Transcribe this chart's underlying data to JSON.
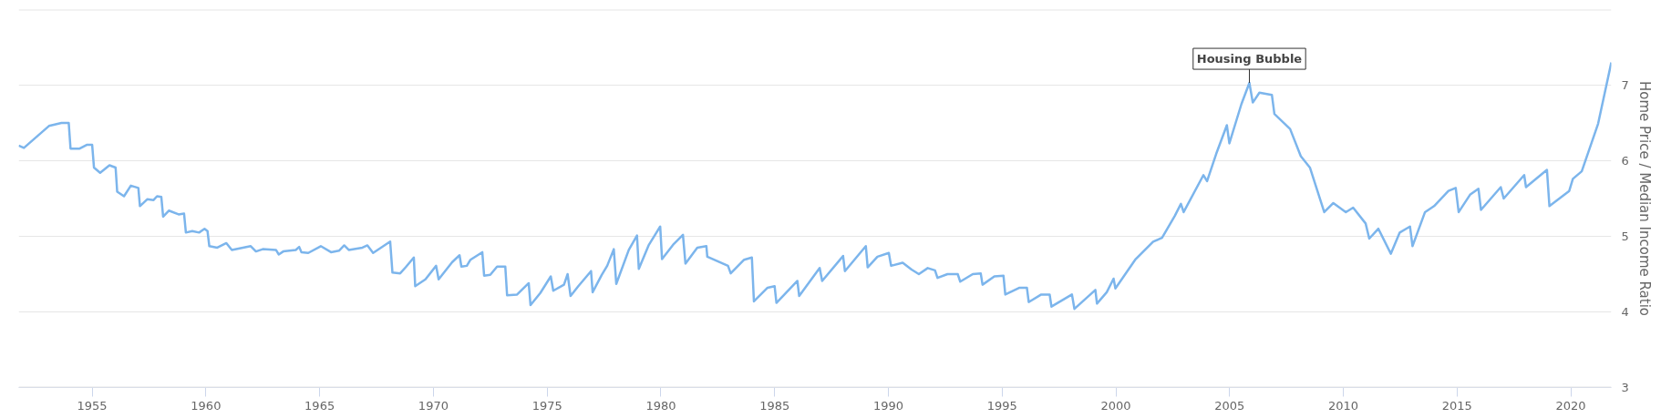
{
  "chart_data": {
    "type": "line",
    "ylabel": "Home Price / Median Income Ratio",
    "annotations": [
      {
        "text": "Housing Bubble",
        "x": 2005.87,
        "y": 7.03
      }
    ],
    "xlim": [
      1951.77,
      2021.78
    ],
    "xticks": [
      1955,
      1960,
      1965,
      1970,
      1975,
      1980,
      1985,
      1990,
      1995,
      2000,
      2005,
      2010,
      2015,
      2020
    ],
    "ylim": [
      3,
      8
    ],
    "yticks": [
      3,
      4,
      5,
      6,
      7,
      {
        "value": 8,
        "label": null
      }
    ],
    "grid": "y",
    "marker": "none",
    "line_style": "solid",
    "series": [
      {
        "color": "#7cb5ec",
        "x": [
          1951.77,
          1952.0,
          1953.1,
          1953.65,
          1953.97,
          1954.05,
          1954.45,
          1954.76,
          1955.0,
          1955.08,
          1955.35,
          1955.76,
          1956.03,
          1956.1,
          1956.4,
          1956.7,
          1957.03,
          1957.1,
          1957.42,
          1957.7,
          1957.85,
          1958.04,
          1958.12,
          1958.37,
          1958.8,
          1959.04,
          1959.12,
          1959.4,
          1959.7,
          1959.94,
          1960.07,
          1960.15,
          1960.5,
          1960.9,
          1961.14,
          1961.97,
          1962.2,
          1962.5,
          1963.08,
          1963.2,
          1963.4,
          1963.95,
          1964.1,
          1964.2,
          1964.5,
          1965.05,
          1965.5,
          1965.85,
          1966.08,
          1966.28,
          1966.88,
          1967.1,
          1967.35,
          1968.1,
          1968.2,
          1968.54,
          1968.78,
          1969.14,
          1969.2,
          1969.65,
          1970.12,
          1970.23,
          1970.83,
          1971.15,
          1971.23,
          1971.47,
          1971.63,
          1972.15,
          1972.23,
          1972.5,
          1972.8,
          1973.16,
          1973.24,
          1973.68,
          1974.19,
          1974.27,
          1974.7,
          1975.16,
          1975.27,
          1975.74,
          1975.9,
          1976.03,
          1976.37,
          1976.93,
          1977.0,
          1977.4,
          1977.64,
          1977.93,
          1978.04,
          1978.59,
          1978.95,
          1979.03,
          1979.46,
          1979.97,
          1980.05,
          1980.57,
          1980.97,
          1981.08,
          1981.6,
          1982.0,
          1982.04,
          1982.95,
          1983.07,
          1983.66,
          1984.0,
          1984.09,
          1984.69,
          1985.0,
          1985.08,
          1986.0,
          1986.08,
          1986.98,
          1987.09,
          1988.01,
          1988.09,
          1989.01,
          1989.09,
          1989.52,
          1990.02,
          1990.12,
          1990.63,
          1991.02,
          1991.34,
          1991.73,
          1992.05,
          1992.16,
          1992.6,
          1993.05,
          1993.16,
          1993.71,
          1994.06,
          1994.14,
          1994.66,
          1995.06,
          1995.14,
          1995.77,
          1996.09,
          1996.17,
          1996.72,
          1997.09,
          1997.17,
          1998.07,
          1998.18,
          1999.1,
          1999.17,
          1999.6,
          1999.9,
          1999.98,
          2000.85,
          2001.64,
          2002.03,
          2002.59,
          2002.86,
          2002.98,
          2003.85,
          2004.01,
          2004.41,
          2004.88,
          2004.99,
          2005.52,
          2005.87,
          2006.02,
          2006.31,
          2006.86,
          2006.97,
          2007.66,
          2008.13,
          2008.53,
          2009.16,
          2009.56,
          2010.11,
          2010.43,
          2010.98,
          2011.14,
          2011.54,
          2012.09,
          2012.48,
          2012.93,
          2013.04,
          2013.59,
          2013.99,
          2014.62,
          2014.94,
          2015.07,
          2015.57,
          2015.94,
          2016.05,
          2016.92,
          2017.05,
          2017.95,
          2018.03,
          2018.95,
          2019.06,
          2019.93,
          2020.09,
          2020.48,
          2021.2,
          2021.78
        ],
        "values": [
          6.2,
          6.17,
          6.46,
          6.5,
          6.5,
          6.16,
          6.16,
          6.21,
          6.21,
          5.91,
          5.84,
          5.94,
          5.91,
          5.59,
          5.53,
          5.67,
          5.64,
          5.4,
          5.49,
          5.48,
          5.53,
          5.52,
          5.26,
          5.34,
          5.29,
          5.3,
          5.05,
          5.07,
          5.05,
          5.1,
          5.07,
          4.87,
          4.85,
          4.91,
          4.82,
          4.87,
          4.8,
          4.83,
          4.82,
          4.76,
          4.8,
          4.82,
          4.86,
          4.79,
          4.78,
          4.87,
          4.79,
          4.81,
          4.88,
          4.82,
          4.85,
          4.88,
          4.78,
          4.93,
          4.52,
          4.51,
          4.59,
          4.72,
          4.34,
          4.43,
          4.61,
          4.43,
          4.66,
          4.75,
          4.6,
          4.61,
          4.69,
          4.79,
          4.48,
          4.49,
          4.6,
          4.6,
          4.22,
          4.23,
          4.38,
          4.09,
          4.25,
          4.47,
          4.28,
          4.36,
          4.5,
          4.21,
          4.34,
          4.54,
          4.26,
          4.49,
          4.61,
          4.83,
          4.37,
          4.82,
          5.01,
          4.57,
          4.88,
          5.13,
          4.7,
          4.9,
          5.02,
          4.64,
          4.85,
          4.87,
          4.73,
          4.61,
          4.51,
          4.69,
          4.72,
          4.14,
          4.32,
          4.34,
          4.12,
          4.41,
          4.21,
          4.58,
          4.41,
          4.74,
          4.54,
          4.87,
          4.59,
          4.73,
          4.78,
          4.61,
          4.65,
          4.56,
          4.5,
          4.58,
          4.55,
          4.45,
          4.5,
          4.5,
          4.4,
          4.5,
          4.51,
          4.36,
          4.47,
          4.48,
          4.23,
          4.32,
          4.32,
          4.13,
          4.23,
          4.23,
          4.07,
          4.23,
          4.04,
          4.29,
          4.11,
          4.26,
          4.44,
          4.31,
          4.69,
          4.93,
          4.98,
          5.27,
          5.43,
          5.32,
          5.81,
          5.73,
          6.09,
          6.47,
          6.23,
          6.75,
          7.03,
          6.77,
          6.9,
          6.87,
          6.62,
          6.42,
          6.06,
          5.91,
          5.32,
          5.44,
          5.32,
          5.38,
          5.17,
          4.97,
          5.1,
          4.77,
          5.05,
          5.13,
          4.87,
          5.32,
          5.4,
          5.6,
          5.64,
          5.32,
          5.55,
          5.63,
          5.35,
          5.65,
          5.5,
          5.81,
          5.65,
          5.88,
          5.4,
          5.6,
          5.76,
          5.86,
          6.49,
          7.3
        ]
      }
    ]
  }
}
